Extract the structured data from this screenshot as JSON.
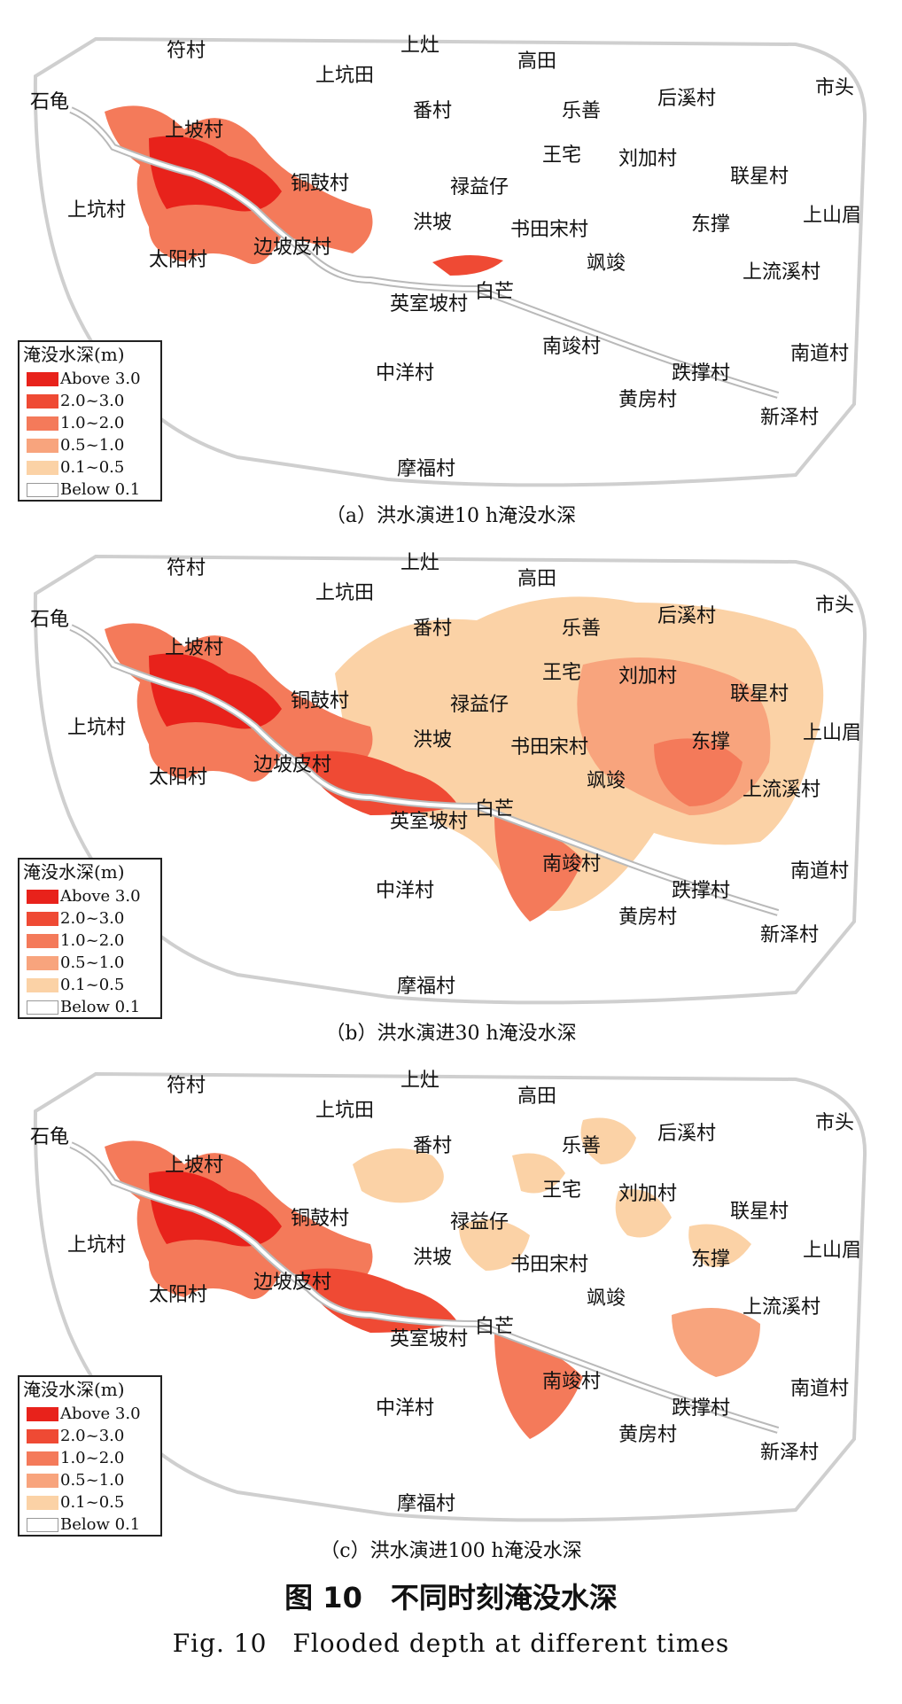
{
  "figure": {
    "title_cn": "图 10　不同时刻淹没水深",
    "title_en": "Fig. 10　Flooded depth at different times"
  },
  "legend": {
    "title": "淹没水深(m)",
    "items": [
      {
        "label": "Above 3.0",
        "color": "#e8221b"
      },
      {
        "label": "2.0~3.0",
        "color": "#ef4a34"
      },
      {
        "label": "1.0~2.0",
        "color": "#f47a5a"
      },
      {
        "label": "0.5~1.0",
        "color": "#f8a47d"
      },
      {
        "label": "0.1~0.5",
        "color": "#fbd2a6"
      },
      {
        "label": "Below 0.1",
        "color": "#ffffff"
      }
    ]
  },
  "panels": [
    {
      "id": "a",
      "caption": "（a）洪水演进10 h淹没水深",
      "flood_hours": 10
    },
    {
      "id": "b",
      "caption": "（b）洪水演进30 h淹没水深",
      "flood_hours": 30
    },
    {
      "id": "c",
      "caption": "（c）洪水演进100 h淹没水深",
      "flood_hours": 100
    }
  ],
  "villages": [
    "符村",
    "上灶",
    "高田",
    "上坑田",
    "石龟",
    "番村",
    "乐善",
    "后溪村",
    "市头",
    "上坡村",
    "王宅",
    "刘加村",
    "联星村",
    "铜鼓村",
    "禄益仔",
    "上坑村",
    "洪坡",
    "书田宋村",
    "东撑",
    "上山眉",
    "太阳村",
    "边坡皮村",
    "飒竣",
    "上流溪村",
    "英室坡村",
    "白芒",
    "南竣村",
    "南道村",
    "中洋村",
    "跌撑村",
    "黄房村",
    "新泽村",
    "摩福村"
  ]
}
